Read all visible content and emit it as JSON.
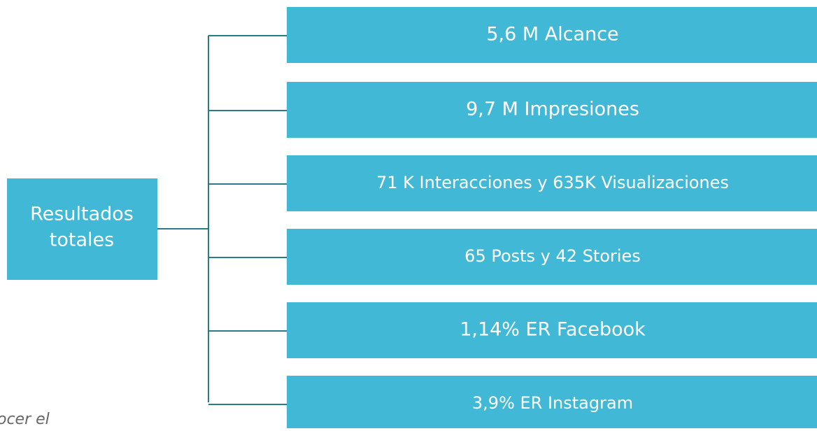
{
  "root": {
    "label_lines": [
      "Resultados",
      "totales"
    ]
  },
  "nodes": [
    {
      "label": "5,6 M Alcance"
    },
    {
      "label": "9,7 M Impresiones"
    },
    {
      "label": "71 K Interacciones y 635K Visualizaciones"
    },
    {
      "label": "65 Posts y 42 Stories"
    },
    {
      "label": "1,14% ER Facebook"
    },
    {
      "label": "3,9% ER Instagram"
    }
  ],
  "footnote": "ocer el"
}
